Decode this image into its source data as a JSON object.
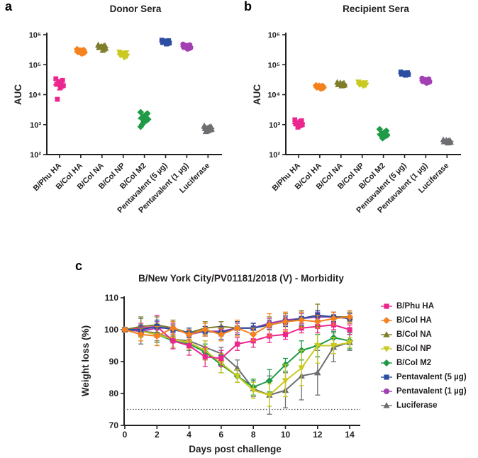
{
  "panels": {
    "a": {
      "letter": "a",
      "title": "Donor Sera"
    },
    "b": {
      "letter": "b",
      "title": "Recipient Sera"
    },
    "c": {
      "letter": "c",
      "title": "B/New York City/PV01181/2018 (V) - Morbidity"
    }
  },
  "colors": {
    "axis": "#231f20",
    "threshold_line": "#58595b"
  },
  "series_style": [
    {
      "name": "B/Phu HA",
      "color": "#ec268f",
      "marker": "square"
    },
    {
      "name": "B/Col HA",
      "color": "#f5821f",
      "marker": "diamond"
    },
    {
      "name": "B/Col NA",
      "color": "#7e7e2b",
      "marker": "triangle-up"
    },
    {
      "name": "B/Col NP",
      "color": "#c9c921",
      "marker": "triangle-down"
    },
    {
      "name": "B/Col M2",
      "color": "#1f9a47",
      "marker": "diamond"
    },
    {
      "name": "Pentavalent (5 µg)",
      "color": "#2c4ea1",
      "marker": "square"
    },
    {
      "name": "Pentavalent (1 µg)",
      "color": "#a23fb3",
      "marker": "circle"
    },
    {
      "name": "Luciferase",
      "color": "#6d6e71",
      "marker": "triangle-up"
    }
  ],
  "legend": {
    "position": "right",
    "items": [
      "B/Phu HA",
      "B/Col HA",
      "B/Col NA",
      "B/Col NP",
      "B/Col M2",
      "Pentavalent (5 µg)",
      "Pentavalent (1 µg)",
      "Luciferase"
    ]
  },
  "chart_data": [
    {
      "id": "donor",
      "type": "scatter",
      "title": "Donor Sera",
      "ylabel": "AUC",
      "yscale": "log",
      "ylim": [
        100,
        1000000
      ],
      "ytick_labels": [
        "10²",
        "10³",
        "10⁴",
        "10⁵",
        "10⁶"
      ],
      "groups": [
        {
          "name": "B/Phu HA",
          "values": [
            34000,
            30000,
            27000,
            25000,
            23000,
            22000,
            20000,
            19000,
            17500,
            26000,
            7000
          ]
        },
        {
          "name": "B/Col HA",
          "values": [
            330000,
            310000,
            295000,
            285000,
            275000,
            265000,
            255000,
            245000,
            235000,
            300000
          ]
        },
        {
          "name": "B/Col NA",
          "values": [
            460000,
            440000,
            420000,
            400000,
            385000,
            370000,
            350000,
            330000,
            300000,
            410000
          ]
        },
        {
          "name": "B/Col NP",
          "values": [
            265000,
            250000,
            235000,
            225000,
            215000,
            205000,
            195000,
            185000,
            175000,
            240000
          ]
        },
        {
          "name": "B/Col M2",
          "values": [
            2600,
            2350,
            2150,
            1950,
            1800,
            1650,
            1500,
            1400,
            1300,
            1200,
            1000,
            850
          ]
        },
        {
          "name": "Pentavalent (5 µg)",
          "values": [
            660000,
            635000,
            610000,
            590000,
            570000,
            550000,
            530000,
            510000,
            490000,
            620000
          ]
        },
        {
          "name": "Pentavalent (1 µg)",
          "values": [
            480000,
            455000,
            435000,
            415000,
            395000,
            380000,
            365000,
            350000,
            335000,
            440000
          ]
        },
        {
          "name": "Luciferase",
          "values": [
            920,
            870,
            830,
            790,
            760,
            730,
            700,
            670,
            640,
            610,
            580
          ]
        }
      ]
    },
    {
      "id": "recipient",
      "type": "scatter",
      "title": "Recipient Sera",
      "ylabel": "AUC",
      "yscale": "log",
      "ylim": [
        100,
        1000000
      ],
      "ytick_labels": [
        "10²",
        "10³",
        "10⁴",
        "10⁵",
        "10⁶"
      ],
      "groups": [
        {
          "name": "B/Phu HA",
          "values": [
            1450,
            1350,
            1250,
            1150,
            1100,
            1050,
            1000,
            950,
            900,
            820
          ]
        },
        {
          "name": "B/Col HA",
          "values": [
            20500,
            19500,
            19000,
            18500,
            18000,
            17500,
            17000,
            16500,
            16000,
            19800
          ]
        },
        {
          "name": "B/Col NA",
          "values": [
            26000,
            24500,
            23500,
            22800,
            22000,
            21500,
            21000,
            20200,
            19500,
            25000
          ]
        },
        {
          "name": "B/Col NP",
          "values": [
            26500,
            25000,
            24000,
            23000,
            22300,
            21700,
            21000,
            20300,
            19700,
            24500
          ]
        },
        {
          "name": "B/Col M2",
          "values": [
            700,
            620,
            560,
            520,
            490,
            460,
            440,
            420,
            390,
            350
          ]
        },
        {
          "name": "Pentavalent (5 µg)",
          "values": [
            57000,
            54000,
            52000,
            50500,
            49000,
            48000,
            47000,
            46000,
            44500,
            53000
          ]
        },
        {
          "name": "Pentavalent (1 µg)",
          "values": [
            35000,
            33000,
            31000,
            29500,
            28500,
            27500,
            26500,
            25500,
            24500,
            32000
          ]
        },
        {
          "name": "Luciferase",
          "values": [
            315,
            300,
            290,
            280,
            272,
            265,
            258,
            250,
            242,
            305
          ]
        }
      ]
    },
    {
      "id": "morbidity",
      "type": "line",
      "title": "B/New York City/PV01181/2018 (V) - Morbidity",
      "xlabel": "Days post challenge",
      "ylabel": "Weight loss (%)",
      "x": [
        0,
        1,
        2,
        3,
        4,
        5,
        6,
        7,
        8,
        9,
        10,
        11,
        12,
        13,
        14
      ],
      "xticks": [
        0,
        2,
        4,
        6,
        8,
        10,
        12,
        14
      ],
      "ylim": [
        70,
        110
      ],
      "yticks": [
        70,
        80,
        90,
        100,
        110
      ],
      "threshold": 75,
      "series": [
        {
          "name": "B/Phu HA",
          "values": [
            100,
            100.5,
            101,
            96.5,
            95,
            91.5,
            91,
            95.5,
            96.5,
            98,
            98.5,
            100.5,
            101,
            101.5,
            100
          ],
          "errors": [
            0,
            1.5,
            3.5,
            2.5,
            3,
            3,
            2.5,
            2,
            2,
            2,
            1.5,
            1.5,
            2,
            1.5,
            1.5
          ]
        },
        {
          "name": "B/Col HA",
          "values": [
            100,
            98.5,
            98,
            100.5,
            98.5,
            100,
            98.5,
            100.5,
            98.5,
            101.5,
            102.5,
            103,
            102.5,
            103.5,
            104
          ],
          "errors": [
            0,
            2,
            3,
            2,
            1.5,
            2,
            2,
            2.5,
            2,
            3.5,
            3,
            2.5,
            2,
            2,
            2
          ]
        },
        {
          "name": "B/Col NA",
          "values": [
            100,
            101,
            101.5,
            100.5,
            99,
            100.5,
            101,
            100.5,
            100.5,
            102,
            103,
            103.5,
            104.5,
            104,
            104
          ],
          "errors": [
            0,
            3,
            2.5,
            2.5,
            1.5,
            2,
            1.5,
            2,
            1.5,
            2,
            2,
            2.5,
            3.5,
            1.5,
            1.5
          ]
        },
        {
          "name": "B/Col NP",
          "values": [
            100,
            99.5,
            98.5,
            97,
            96,
            93.5,
            89.5,
            85.5,
            81,
            79.5,
            84,
            88,
            95,
            95,
            96
          ],
          "errors": [
            0,
            2,
            3.5,
            2.5,
            2,
            3,
            3,
            2,
            2.5,
            3.5,
            5,
            5.5,
            5.5,
            2.5,
            1.5
          ]
        },
        {
          "name": "B/Col M2",
          "values": [
            100,
            99.5,
            98.5,
            96.5,
            95.5,
            93,
            89,
            85.5,
            82,
            84,
            89,
            93.5,
            95,
            97.5,
            96.5
          ],
          "errors": [
            0,
            1.5,
            2.5,
            2.5,
            2,
            2.5,
            2.5,
            2,
            2.5,
            3.5,
            2,
            3,
            3.5,
            2,
            2.5
          ]
        },
        {
          "name": "Pentavalent (5 µg)",
          "values": [
            100,
            100,
            101,
            100,
            99,
            99.5,
            99,
            100.5,
            100.5,
            101.5,
            102.5,
            103.5,
            104.5,
            104,
            103.5
          ],
          "errors": [
            0,
            1.5,
            2,
            1.5,
            1.5,
            1.5,
            2,
            2,
            1.5,
            1.5,
            1.5,
            2,
            1.5,
            1.5,
            1.5
          ]
        },
        {
          "name": "Pentavalent (1 µg)",
          "values": [
            100,
            99.5,
            100.5,
            100.5,
            98.5,
            99.5,
            99.5,
            100.5,
            100.5,
            102,
            103,
            103.5,
            104,
            104,
            103.5
          ],
          "errors": [
            0,
            1.5,
            2,
            1.5,
            1.5,
            1.5,
            1.5,
            1.5,
            1.5,
            1.5,
            1.5,
            1.5,
            1.5,
            1.5,
            1.5
          ]
        },
        {
          "name": "Luciferase",
          "values": [
            100,
            99.5,
            99,
            97,
            96.5,
            94.5,
            92.5,
            88,
            81.5,
            79.5,
            81,
            85.5,
            86.5,
            94.5,
            96
          ],
          "errors": [
            0,
            4,
            2.5,
            2.5,
            2,
            2,
            2,
            2.5,
            2.5,
            6,
            5.5,
            7.5,
            7,
            4.5,
            2.5
          ]
        }
      ]
    }
  ]
}
